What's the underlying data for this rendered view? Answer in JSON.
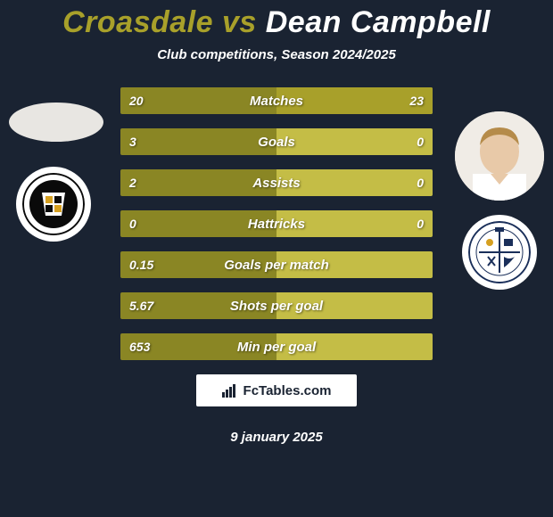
{
  "header": {
    "player1": "Croasdale",
    "vs": "vs",
    "player2": "Dean Campbell",
    "subtitle": "Club competitions, Season 2024/2025",
    "title_color_p1": "#a8a02a",
    "title_color_p2": "#ffffff"
  },
  "colors": {
    "background": "#1a2332",
    "bar_left": "#8a8624",
    "bar_right_underlay": "#c4bd46",
    "bar_right_fill": "#a8a02a",
    "text": "#ffffff"
  },
  "bar_style": {
    "height": 30,
    "gap": 16,
    "label_fontsize": 15,
    "value_fontsize": 14
  },
  "bars": [
    {
      "label": "Matches",
      "left_val": "20",
      "right_val": "23",
      "left_pct": 100,
      "right_pct": 100
    },
    {
      "label": "Goals",
      "left_val": "3",
      "right_val": "0",
      "left_pct": 100,
      "right_pct": 0
    },
    {
      "label": "Assists",
      "left_val": "2",
      "right_val": "0",
      "left_pct": 100,
      "right_pct": 0
    },
    {
      "label": "Hattricks",
      "left_val": "0",
      "right_val": "0",
      "left_pct": 100,
      "right_pct": 0
    },
    {
      "label": "Goals per match",
      "left_val": "0.15",
      "right_val": "",
      "left_pct": 100,
      "right_pct": 0
    },
    {
      "label": "Shots per goal",
      "left_val": "5.67",
      "right_val": "",
      "left_pct": 100,
      "right_pct": 0
    },
    {
      "label": "Min per goal",
      "left_val": "653",
      "right_val": "",
      "left_pct": 100,
      "right_pct": 0
    }
  ],
  "avatars": {
    "left_player_bg": "#e8e6e2",
    "left_badge_bg": "#ffffff",
    "left_badge_inner": "#0a0a0a",
    "left_badge_accent": "#d6a020",
    "left_badge_name": "PORT VALE F.C.",
    "right_player_bg": "#f0ece6",
    "right_player_hair": "#b58b4a",
    "right_player_skin": "#e8c9a8",
    "right_player_shirt": "#ffffff",
    "right_badge_bg": "#ffffff",
    "right_badge_border": "#1a2f5a",
    "right_badge_name": "BARROW AFC"
  },
  "branding": {
    "logo_text": "FcTables.com"
  },
  "footer": {
    "date": "9 january 2025"
  }
}
